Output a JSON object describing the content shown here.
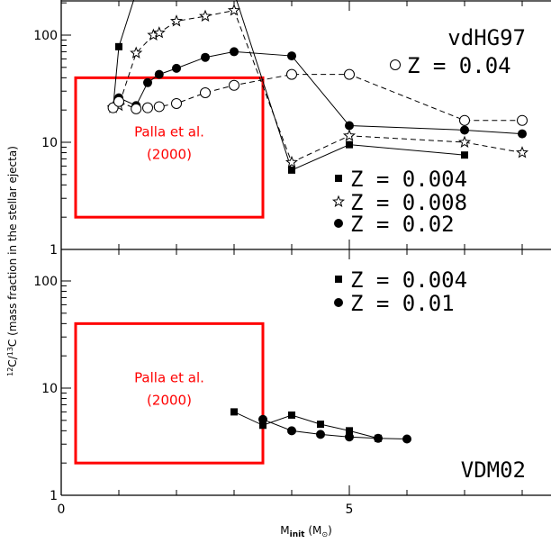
{
  "chart_data": [
    {
      "type": "line",
      "panel": "top",
      "panel_label": "vdHG97",
      "xlim": [
        0,
        8.5
      ],
      "ylim": [
        1,
        200
      ],
      "yscale": "log",
      "ytick_labels": [
        "1",
        "10",
        "100"
      ],
      "legend": [
        {
          "name": "Z = 0.004",
          "marker": "filled-square",
          "label": "Z = 0.004"
        },
        {
          "name": "Z = 0.008",
          "marker": "open-star",
          "label": "Z = 0.008"
        },
        {
          "name": "Z = 0.02",
          "marker": "filled-circle",
          "label": "Z = 0.02"
        },
        {
          "name": "Z = 0.04",
          "marker": "open-circle",
          "label": "Z = 0.04"
        }
      ],
      "series": [
        {
          "name": "Z = 0.004",
          "marker": "filled-square",
          "linestyle": "solid",
          "x": [
            0.9,
            1.0,
            1.3,
            3.0,
            4.0,
            5.0,
            7.0
          ],
          "y": [
            21,
            78,
            250,
            250,
            5.5,
            9.5,
            7.6
          ]
        },
        {
          "name": "Z = 0.008",
          "marker": "open-star",
          "linestyle": "dashed",
          "x": [
            0.9,
            1.0,
            1.3,
            1.6,
            1.7,
            2.0,
            2.5,
            3.0,
            4.0,
            5.0,
            7.0,
            8.0
          ],
          "y": [
            21,
            22,
            68,
            100,
            105,
            135,
            150,
            170,
            6.5,
            11.5,
            10,
            8
          ]
        },
        {
          "name": "Z = 0.02",
          "marker": "filled-circle",
          "linestyle": "solid",
          "x": [
            0.9,
            1.0,
            1.3,
            1.5,
            1.7,
            2.0,
            2.5,
            3.0,
            4.0,
            5.0,
            7.0,
            8.0
          ],
          "y": [
            21,
            26,
            22,
            36,
            43,
            49,
            62,
            70,
            64,
            14.3,
            13,
            12
          ]
        },
        {
          "name": "Z = 0.04",
          "marker": "open-circle",
          "linestyle": "dashed",
          "x": [
            0.9,
            1.0,
            1.3,
            1.5,
            1.7,
            2.0,
            2.5,
            3.0,
            4.0,
            5.0,
            7.0,
            8.0
          ],
          "y": [
            21,
            24,
            20.5,
            21,
            21.5,
            23,
            29,
            34,
            43,
            43,
            16,
            16
          ]
        }
      ],
      "annotation": {
        "label_line1": "Palla et al.",
        "label_line2": "(2000)",
        "x0": 0.25,
        "x1": 3.5,
        "y0": 2,
        "y1": 40,
        "color": "#ff0000"
      }
    },
    {
      "type": "line",
      "panel": "bottom",
      "panel_label": "VDM02",
      "xlim": [
        0,
        8.5
      ],
      "ylim": [
        1,
        200
      ],
      "yscale": "log",
      "ytick_labels": [
        "1",
        "10",
        "100"
      ],
      "xtick_labels": [
        "0",
        "5"
      ],
      "legend": [
        {
          "name": "Z = 0.004",
          "marker": "filled-square",
          "label": "Z = 0.004"
        },
        {
          "name": "Z = 0.01",
          "marker": "filled-circle",
          "label": "Z = 0.01"
        }
      ],
      "series": [
        {
          "name": "Z = 0.004",
          "marker": "filled-square",
          "linestyle": "solid",
          "x": [
            3.0,
            3.5,
            4.0,
            4.5,
            5.0,
            5.5
          ],
          "y": [
            6.0,
            4.5,
            5.6,
            4.6,
            4.0,
            3.4
          ]
        },
        {
          "name": "Z = 0.01",
          "marker": "filled-circle",
          "linestyle": "solid",
          "x": [
            3.5,
            4.0,
            4.5,
            5.0,
            5.5,
            6.0
          ],
          "y": [
            5.1,
            4.0,
            3.7,
            3.5,
            3.4,
            3.35
          ]
        }
      ],
      "annotation": {
        "label_line1": "Palla et al.",
        "label_line2": "(2000)",
        "x0": 0.25,
        "x1": 3.5,
        "y0": 2,
        "y1": 40,
        "color": "#ff0000"
      }
    }
  ],
  "shared": {
    "xlabel_main": "M",
    "xlabel_sub": "init",
    "xlabel_unit": "(M",
    "xlabel_unit_close": ")",
    "ylabel_pre": "12",
    "ylabel_mid": "C/",
    "ylabel_sup2": "13",
    "ylabel_post": "C (mass fraction in the stellar ejecta)",
    "colors": {
      "axes": "#000000",
      "annotation": "#ff0000",
      "background": "#ffffff"
    }
  }
}
